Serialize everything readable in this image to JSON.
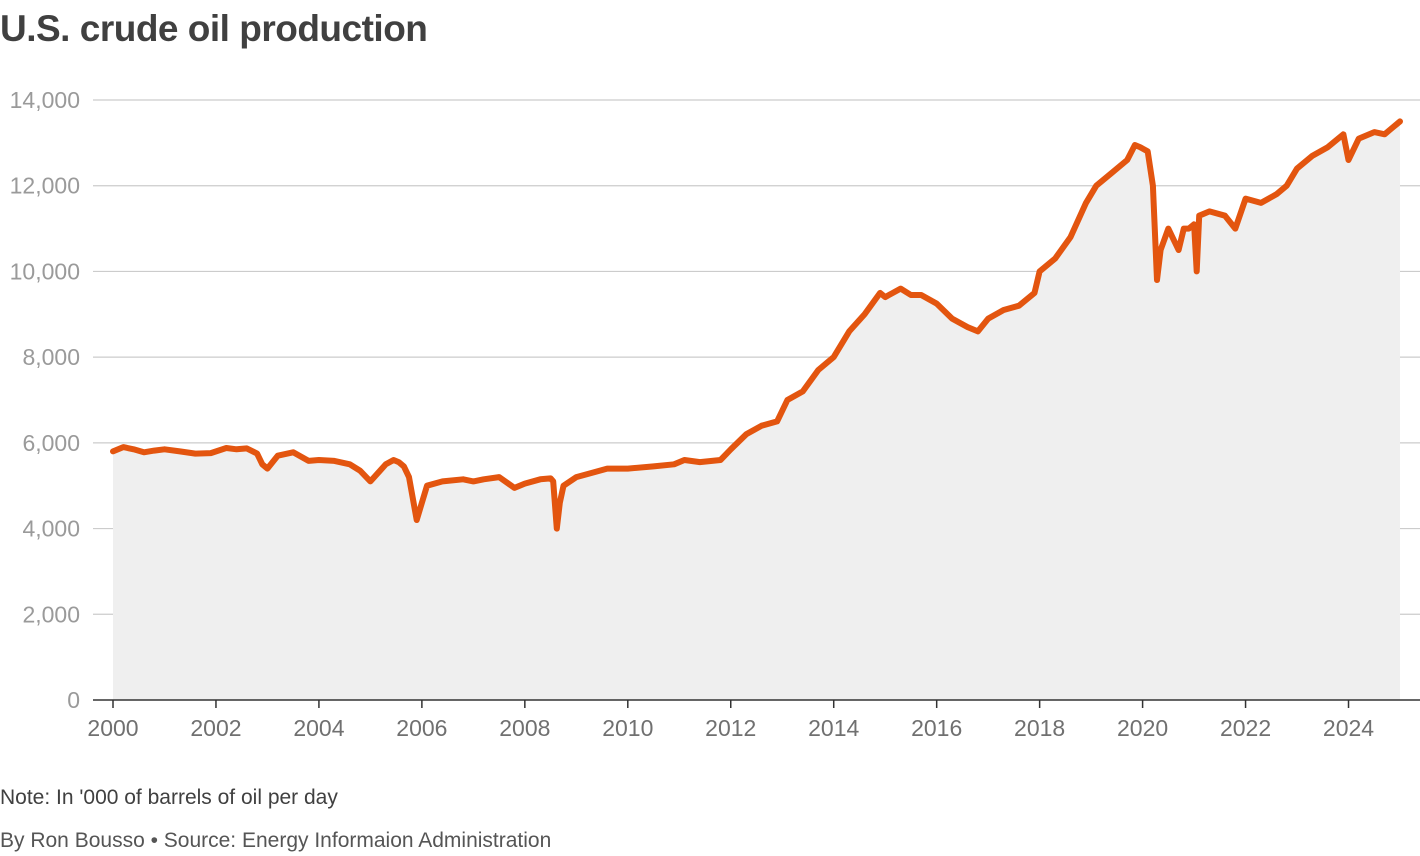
{
  "chart_data": {
    "type": "area",
    "title": "U.S. crude oil production",
    "note": "Note: In '000 of barrels of oil per day",
    "credit": "By Ron Bousso • Source: Energy Informaion Administration",
    "xlim": [
      2000.0,
      2025.0
    ],
    "ylim": [
      0,
      14000
    ],
    "y_ticks": [
      0,
      2000,
      4000,
      6000,
      8000,
      10000,
      12000,
      14000
    ],
    "y_tick_labels": [
      "0",
      "2,000",
      "4,000",
      "6,000",
      "8,000",
      "10,000",
      "12,000",
      "14,000"
    ],
    "x_ticks": [
      2000,
      2002,
      2004,
      2006,
      2008,
      2010,
      2012,
      2014,
      2016,
      2018,
      2020,
      2022,
      2024
    ],
    "x_tick_labels": [
      "2000",
      "2002",
      "2004",
      "2006",
      "2008",
      "2010",
      "2012",
      "2014",
      "2016",
      "2018",
      "2020",
      "2022",
      "2024"
    ],
    "grid": true,
    "colors": {
      "line": "#e3550f",
      "area": "#efefef",
      "grid": "#cccccc",
      "axis": "#333333"
    },
    "series": [
      {
        "x": [
          2000.0,
          2000.2,
          2000.4,
          2000.6,
          2000.8,
          2001.0,
          2001.3,
          2001.6,
          2001.9,
          2002.2,
          2002.4,
          2002.6,
          2002.8,
          2002.9,
          2003.0,
          2003.2,
          2003.5,
          2003.8,
          2004.0,
          2004.3,
          2004.6,
          2004.8,
          2005.0,
          2005.3,
          2005.45,
          2005.55,
          2005.65,
          2005.75,
          2005.9,
          2006.1,
          2006.4,
          2006.8,
          2007.0,
          2007.2,
          2007.5,
          2007.8,
          2008.0,
          2008.3,
          2008.5,
          2008.55,
          2008.62,
          2008.68,
          2008.75,
          2009.0,
          2009.3,
          2009.6,
          2010.0,
          2010.5,
          2010.9,
          2011.1,
          2011.4,
          2011.8,
          2012.0,
          2012.3,
          2012.6,
          2012.9,
          2013.1,
          2013.4,
          2013.7,
          2014.0,
          2014.3,
          2014.6,
          2014.9,
          2015.0,
          2015.3,
          2015.5,
          2015.7,
          2016.0,
          2016.3,
          2016.6,
          2016.8,
          2017.0,
          2017.3,
          2017.6,
          2017.9,
          2018.0,
          2018.3,
          2018.6,
          2018.9,
          2019.1,
          2019.4,
          2019.7,
          2019.85,
          2019.95,
          2020.1,
          2020.2,
          2020.28,
          2020.35,
          2020.5,
          2020.7,
          2020.8,
          2020.9,
          2021.0,
          2021.05,
          2021.1,
          2021.3,
          2021.6,
          2021.8,
          2022.0,
          2022.3,
          2022.6,
          2022.8,
          2023.0,
          2023.3,
          2023.6,
          2023.8,
          2023.9,
          2024.0,
          2024.2,
          2024.5,
          2024.7,
          2024.8,
          2025.0
        ],
        "values": [
          5800,
          5900,
          5850,
          5780,
          5820,
          5850,
          5800,
          5750,
          5760,
          5880,
          5850,
          5870,
          5750,
          5500,
          5400,
          5700,
          5780,
          5580,
          5600,
          5580,
          5500,
          5350,
          5100,
          5500,
          5600,
          5550,
          5450,
          5200,
          4200,
          5000,
          5100,
          5150,
          5100,
          5150,
          5200,
          4950,
          5050,
          5150,
          5170,
          5100,
          4000,
          4600,
          5000,
          5200,
          5300,
          5400,
          5400,
          5450,
          5500,
          5600,
          5550,
          5600,
          5850,
          6200,
          6400,
          6500,
          7000,
          7200,
          7700,
          8000,
          8600,
          9000,
          9500,
          9400,
          9600,
          9450,
          9450,
          9250,
          8900,
          8700,
          8600,
          8900,
          9100,
          9200,
          9500,
          10000,
          10300,
          10800,
          11600,
          12000,
          12300,
          12600,
          12950,
          12900,
          12800,
          12000,
          9800,
          10500,
          11000,
          10500,
          11000,
          11000,
          11100,
          10000,
          11300,
          11400,
          11300,
          11000,
          11700,
          11600,
          11800,
          12000,
          12400,
          12700,
          12900,
          13100,
          13200,
          12600,
          13100,
          13250,
          13200,
          13300,
          13500
        ]
      }
    ]
  }
}
